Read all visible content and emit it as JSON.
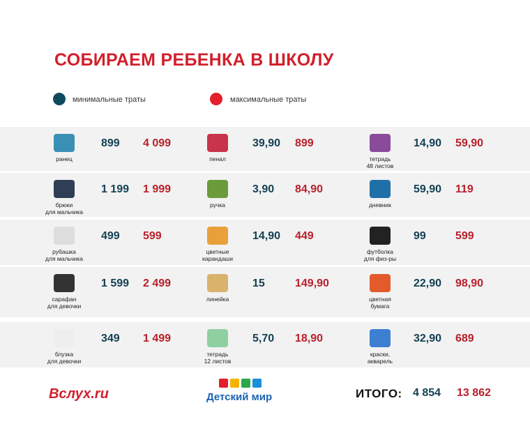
{
  "title": "СОБИРАЕМ РЕБЕНКА В ШКОЛУ",
  "legend": {
    "min": "минимальные траты",
    "max": "максимальные траты"
  },
  "rows": [
    [
      {
        "label": [
          "ранец"
        ],
        "min": "899",
        "max": "4 099"
      },
      {
        "label": [
          "пенал"
        ],
        "min": "39,90",
        "max": "899"
      },
      {
        "label": [
          "тетрадь",
          "48 листов"
        ],
        "min": "14,90",
        "max": "59,90"
      }
    ],
    [
      {
        "label": [
          "брюки",
          "для мальчика"
        ],
        "min": "1 199",
        "max": "1 999"
      },
      {
        "label": [
          "ручка"
        ],
        "min": "3,90",
        "max": "84,90"
      },
      {
        "label": [
          "дневник"
        ],
        "min": "59,90",
        "max": "119"
      }
    ],
    [
      {
        "label": [
          "рубашка",
          "для мальчика"
        ],
        "min": "499",
        "max": "599"
      },
      {
        "label": [
          "цветные",
          "карандаши"
        ],
        "min": "14,90",
        "max": "449"
      },
      {
        "label": [
          "футболка",
          "для физ-ры"
        ],
        "min": "99",
        "max": "599"
      }
    ],
    [
      {
        "label": [
          "сарафан",
          "для девочки"
        ],
        "min": "1 599",
        "max": "2 499"
      },
      {
        "label": [
          "линейка"
        ],
        "min": "15",
        "max": "149,90"
      },
      {
        "label": [
          "цветная",
          "бумага"
        ],
        "min": "22,90",
        "max": "98,90"
      }
    ],
    [
      {
        "label": [
          "блузка",
          "для девочки"
        ],
        "min": "349",
        "max": "1 499"
      },
      {
        "label": [
          "тетрадь",
          "12 листов"
        ],
        "min": "5,70",
        "max": "18,90"
      },
      {
        "label": [
          "краски,",
          "акварель"
        ],
        "min": "32,90",
        "max": "689"
      }
    ]
  ],
  "footer": {
    "brand1": "Вслух.ru",
    "brand2": "Детский мир",
    "total_label": "ИТОГО:",
    "total_min": "4 854",
    "total_max": "13 862"
  }
}
